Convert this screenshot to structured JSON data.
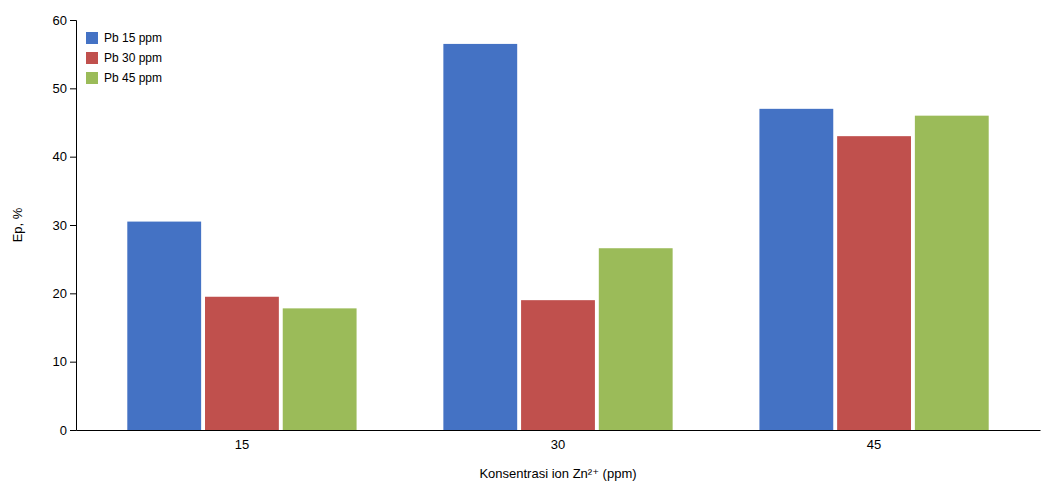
{
  "chart_data": {
    "type": "bar",
    "categories": [
      "15",
      "30",
      "45"
    ],
    "series": [
      {
        "name": "Pb 15 ppm",
        "color": "#4472C4",
        "values": [
          30.5,
          56.5,
          47.0
        ]
      },
      {
        "name": "Pb 30 ppm",
        "color": "#C0504D",
        "values": [
          19.5,
          19.0,
          43.0
        ]
      },
      {
        "name": "Pb 45 ppm",
        "color": "#9BBB59",
        "values": [
          17.8,
          26.6,
          46.0
        ]
      }
    ],
    "xlabel": "Konsentrasi ion Zn²⁺ (ppm)",
    "ylabel": "Ep, %",
    "ylim": [
      0,
      60
    ],
    "yticks": [
      0,
      10,
      20,
      30,
      40,
      50,
      60
    ],
    "grid": false,
    "legend": "upper left"
  }
}
